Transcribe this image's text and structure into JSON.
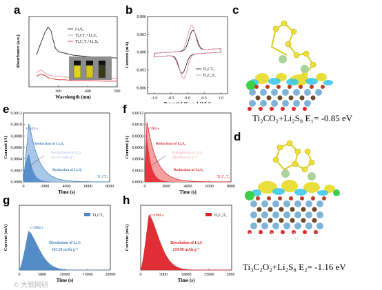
{
  "panel_labels": {
    "a": "a",
    "b": "b",
    "c": "c",
    "d": "d",
    "e": "e",
    "f": "f",
    "g": "g",
    "h": "h"
  },
  "energies": {
    "c": {
      "formula": "Ti₂CO₂+Li₂S₈",
      "value": " E₁= -0.85 eV"
    },
    "d": {
      "formula": "Ti₃C₂O₂+Li₂S₈",
      "value": " E₂= -1.16 eV"
    }
  },
  "watermark": "© 大钢网研",
  "colors": {
    "black": "#222222",
    "pink": "#e8899a",
    "red": "#e0232a",
    "blue": "#4a86c5",
    "lightblue": "#a9c8e8",
    "pinkfill": "#f5a0a0",
    "vial": "#e2d21a"
  },
  "chart_data": [
    {
      "panel": "a",
      "type": "line",
      "xlabel": "Wavelength (nm)",
      "ylabel": "Absorbance (a.u.)",
      "xlim": [
        200,
        500
      ],
      "xticks": [
        "300",
        "400",
        "500"
      ],
      "series": [
        {
          "name": "Li₂S₈",
          "color": "#222222",
          "x": [
            225,
            240,
            255,
            265,
            275,
            280,
            290,
            300,
            320,
            350,
            400,
            450,
            500
          ],
          "y": [
            0.45,
            0.62,
            0.78,
            0.85,
            0.8,
            0.7,
            0.55,
            0.5,
            0.48,
            0.45,
            0.43,
            0.42,
            0.41
          ]
        },
        {
          "name": "Ti₂CTₓ+Li₂S₈",
          "color": "#e8899a",
          "x": [
            225,
            240,
            255,
            265,
            275,
            285,
            300,
            320,
            350,
            400,
            450,
            500
          ],
          "y": [
            0.2,
            0.24,
            0.2,
            0.17,
            0.16,
            0.15,
            0.15,
            0.14,
            0.13,
            0.13,
            0.12,
            0.12
          ]
        },
        {
          "name": "Ti₃C₂Tₓ+Li₂S₈",
          "color": "#e0232a",
          "x": [
            225,
            240,
            255,
            265,
            275,
            285,
            300,
            320,
            350,
            400,
            450,
            500
          ],
          "y": [
            0.15,
            0.18,
            0.16,
            0.13,
            0.12,
            0.11,
            0.1,
            0.1,
            0.09,
            0.09,
            0.08,
            0.08
          ]
        }
      ]
    },
    {
      "panel": "b",
      "type": "line",
      "xlabel": "Potential (V vs. Li⁺/Li)",
      "ylabel": "Current (mA)",
      "xlim": [
        -1.2,
        1.2
      ],
      "ylim": [
        -0.007,
        0.006
      ],
      "xticks": [
        "-1.0",
        "-0.5",
        "0.0",
        "0.5",
        "1.0"
      ],
      "yticks": [
        "0.006",
        "0.003",
        "0.000",
        "-0.003",
        "-0.006"
      ],
      "series": [
        {
          "name": "Ti₂CTₓ",
          "color": "#222222"
        },
        {
          "name": "Ti₃C₂Tₓ",
          "color": "#e8899a"
        }
      ]
    },
    {
      "panel": "e",
      "type": "area",
      "xlabel": "Time (s)",
      "ylabel": "Current (A)",
      "xlim": [
        0,
        8000
      ],
      "ylim": [
        0,
        0.0012
      ],
      "xticks": [
        "0",
        "2000",
        "4000",
        "6000",
        "8000"
      ],
      "yticks": [
        "0.0000",
        "0.0002",
        "0.0004",
        "0.0006",
        "0.0008",
        "0.0010",
        "0.0012"
      ],
      "legend": "Ti₂CTₓ",
      "annotations": [
        "t=523 s",
        "Reduction of Li₂S₈",
        "Precipitation of Li₂S",
        "263.57 mAh g⁻¹",
        "Reduction of Li₂S₆"
      ],
      "peak_time_s": 523
    },
    {
      "panel": "f",
      "type": "area",
      "xlabel": "Time (s)",
      "ylabel": "Current (A)",
      "xlim": [
        0,
        8000
      ],
      "ylim": [
        0,
        0.0012
      ],
      "xticks": [
        "0",
        "2000",
        "4000",
        "6000",
        "8000"
      ],
      "yticks": [
        "0.0000",
        "0.0002",
        "0.0004",
        "0.0006",
        "0.0008",
        "0.0010",
        "0.0012"
      ],
      "legend": "Ti₃C₂Tₓ",
      "annotations": [
        "t=203 s",
        "Reduction of Li₂S₈",
        "Precipitation of Li₂S",
        "284.86 mAh g⁻¹",
        "Reduction of Li₂S₆"
      ],
      "peak_time_s": 203
    },
    {
      "panel": "g",
      "type": "area",
      "xlabel": "Time (s)",
      "ylabel": "Current (mA)",
      "xlim": [
        0,
        20000
      ],
      "xticks": [
        "0",
        "5000",
        "10000",
        "15000",
        "20000"
      ],
      "legend": "Ti₂CTₓ",
      "annotations": [
        "t=1992 s",
        "Dissolution of Li₂S",
        "165.29 mAh g⁻¹"
      ],
      "peak_time_s": 1992
    },
    {
      "panel": "h",
      "type": "area",
      "xlabel": "Time (s)",
      "ylabel": "Current (mA)",
      "xlim": [
        0,
        20000
      ],
      "xticks": [
        "0",
        "5000",
        "10000",
        "15000",
        "20000"
      ],
      "legend": "Ti₃C₂Tₓ",
      "annotations": [
        "t=1782 s",
        "Dissolution of Li₂S",
        "219.98 mAh g⁻¹"
      ],
      "peak_time_s": 1782
    }
  ]
}
